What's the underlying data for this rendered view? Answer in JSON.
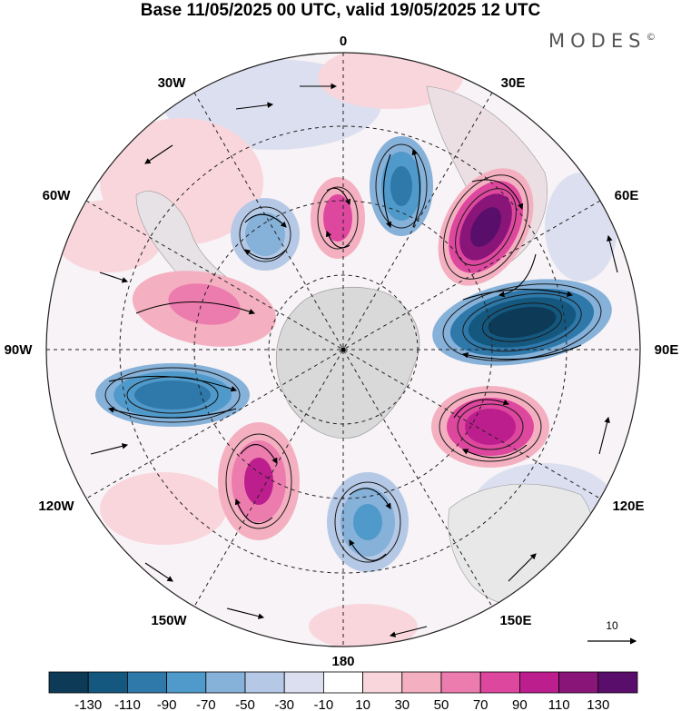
{
  "title": "Base 11/05/2025 00 UTC, valid 19/05/2025 12 UTC",
  "brand": "MODES",
  "brand_mark": "©",
  "longitudes": [
    "0",
    "30E",
    "60E",
    "90E",
    "120E",
    "150E",
    "180",
    "150W",
    "120W",
    "90W",
    "60W",
    "30W"
  ],
  "reference_vector": {
    "label": "10"
  },
  "colorbar": {
    "labels": [
      "-130",
      "-110",
      "-90",
      "-70",
      "-50",
      "-30",
      "-10",
      "10",
      "30",
      "50",
      "70",
      "90",
      "110",
      "130"
    ],
    "colors": [
      "#0d3b57",
      "#15587f",
      "#2e78aa",
      "#4f9acb",
      "#86b1d9",
      "#b5c9e6",
      "#dcdfef",
      "#ffffff",
      "#f9d6dc",
      "#f4b0c0",
      "#ec7cae",
      "#de479e",
      "#bc1e8d",
      "#8a1579",
      "#5a0e6b"
    ]
  },
  "colors": {
    "land": "#d9d9d9",
    "ocean_neutral": "#ffffff"
  }
}
